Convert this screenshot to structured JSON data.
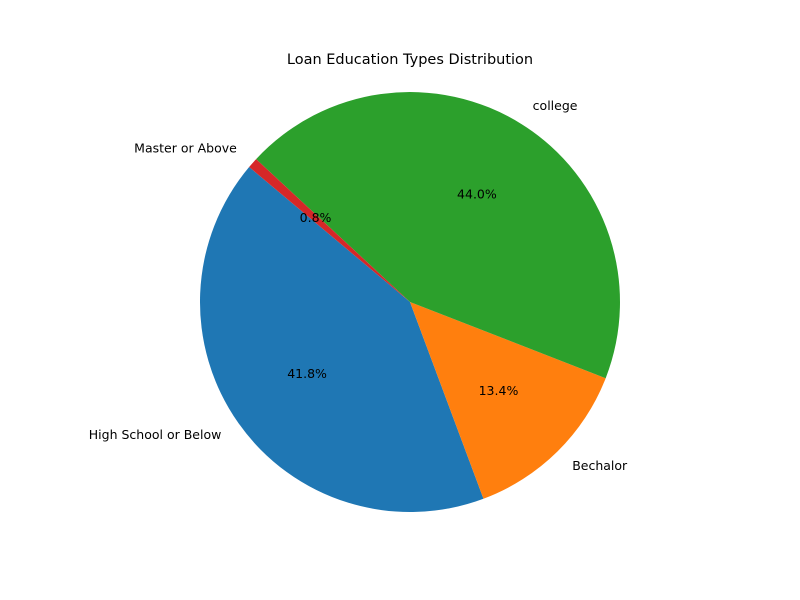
{
  "chart_data": {
    "type": "pie",
    "title": "Loan Education Types Distribution",
    "start_angle_deg": 140,
    "direction": "counterclockwise",
    "slices": [
      {
        "label": "High School or Below",
        "value": 41.8,
        "pct_label": "41.8%",
        "color": "#1f77b4"
      },
      {
        "label": "Bechalor",
        "value": 13.4,
        "pct_label": "13.4%",
        "color": "#ff7f0e"
      },
      {
        "label": "college",
        "value": 44.0,
        "pct_label": "44.0%",
        "color": "#2ca02c"
      },
      {
        "label": "Master or Above",
        "value": 0.8,
        "pct_label": "0.8%",
        "color": "#d62728"
      }
    ]
  }
}
